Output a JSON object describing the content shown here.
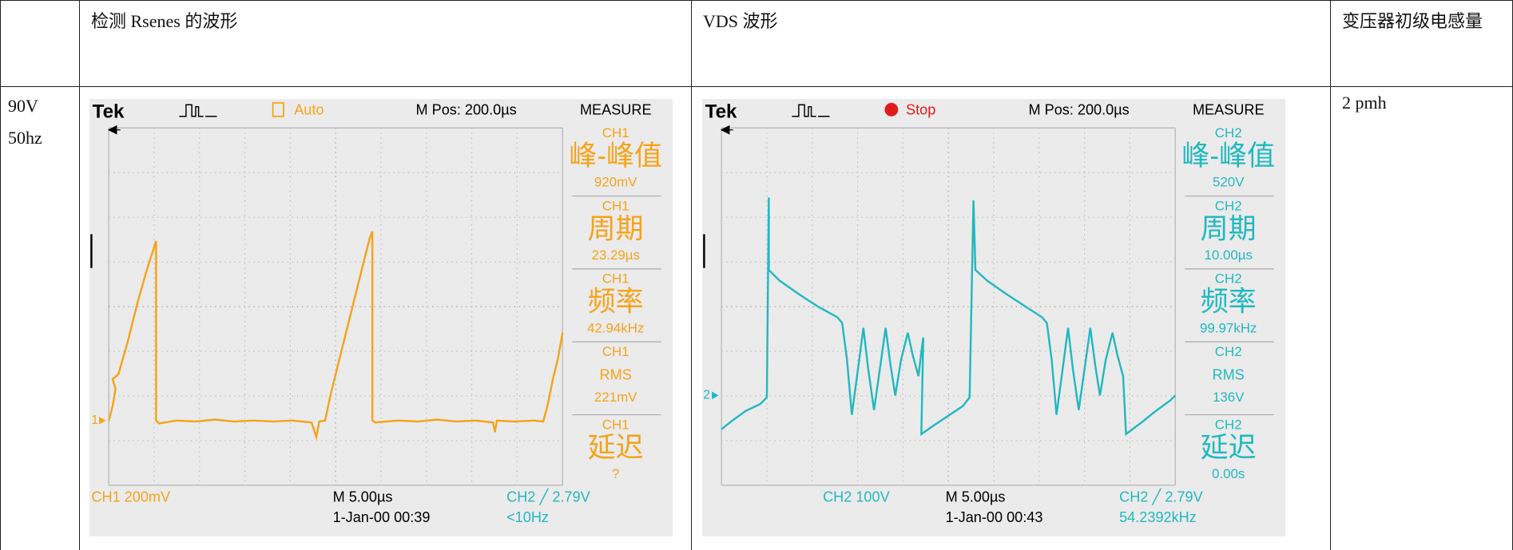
{
  "table": {
    "header": [
      "检测 Rsenes 的波形",
      "VDS 波形",
      "变压器初级电感量"
    ],
    "rows": [
      {
        "label": [
          "90V",
          "50hz"
        ],
        "scopes": [
          {
            "brand": "Tek",
            "mode": "Auto",
            "position": "M Pos: 200.0µs",
            "measure_title": "MEASURE",
            "measurements": [
              {
                "channel": "CH1",
                "name": "峰-峰值",
                "value": "920mV"
              },
              {
                "channel": "CH1",
                "name": "周期",
                "value": "23.29µs"
              },
              {
                "channel": "CH1",
                "name": "频率",
                "value": "42.94kHz"
              },
              {
                "channel": "CH1",
                "name": "RMS",
                "value": "221mV"
              },
              {
                "channel": "CH1",
                "name": "延迟",
                "value": "?"
              }
            ],
            "channel_scale": "CH1  200mV",
            "timebase": "M 5.00µs",
            "timestamp": "1-Jan-00 00:39",
            "trigger": "CH2 ╱ 2.79V",
            "frequency": "<10Hz",
            "ground_marker": "1"
          },
          {
            "brand": "Tek",
            "mode": "Stop",
            "position": "M Pos: 200.0µs",
            "measure_title": "MEASURE",
            "measurements": [
              {
                "channel": "CH2",
                "name": "峰-峰值",
                "value": "520V"
              },
              {
                "channel": "CH2",
                "name": "周期",
                "value": "10.00µs"
              },
              {
                "channel": "CH2",
                "name": "频率",
                "value": "99.97kHz"
              },
              {
                "channel": "CH2",
                "name": "RMS",
                "value": "136V"
              },
              {
                "channel": "CH2",
                "name": "延迟",
                "value": "0.00s"
              }
            ],
            "channel_scale": "CH2  100V",
            "timebase": "M 5.00µs",
            "timestamp": "1-Jan-00 00:43",
            "trigger": "CH2 ╱ 2.79V",
            "frequency": "54.2392kHz",
            "ground_marker": "2"
          }
        ],
        "inductance": "2 pmh"
      }
    ]
  }
}
